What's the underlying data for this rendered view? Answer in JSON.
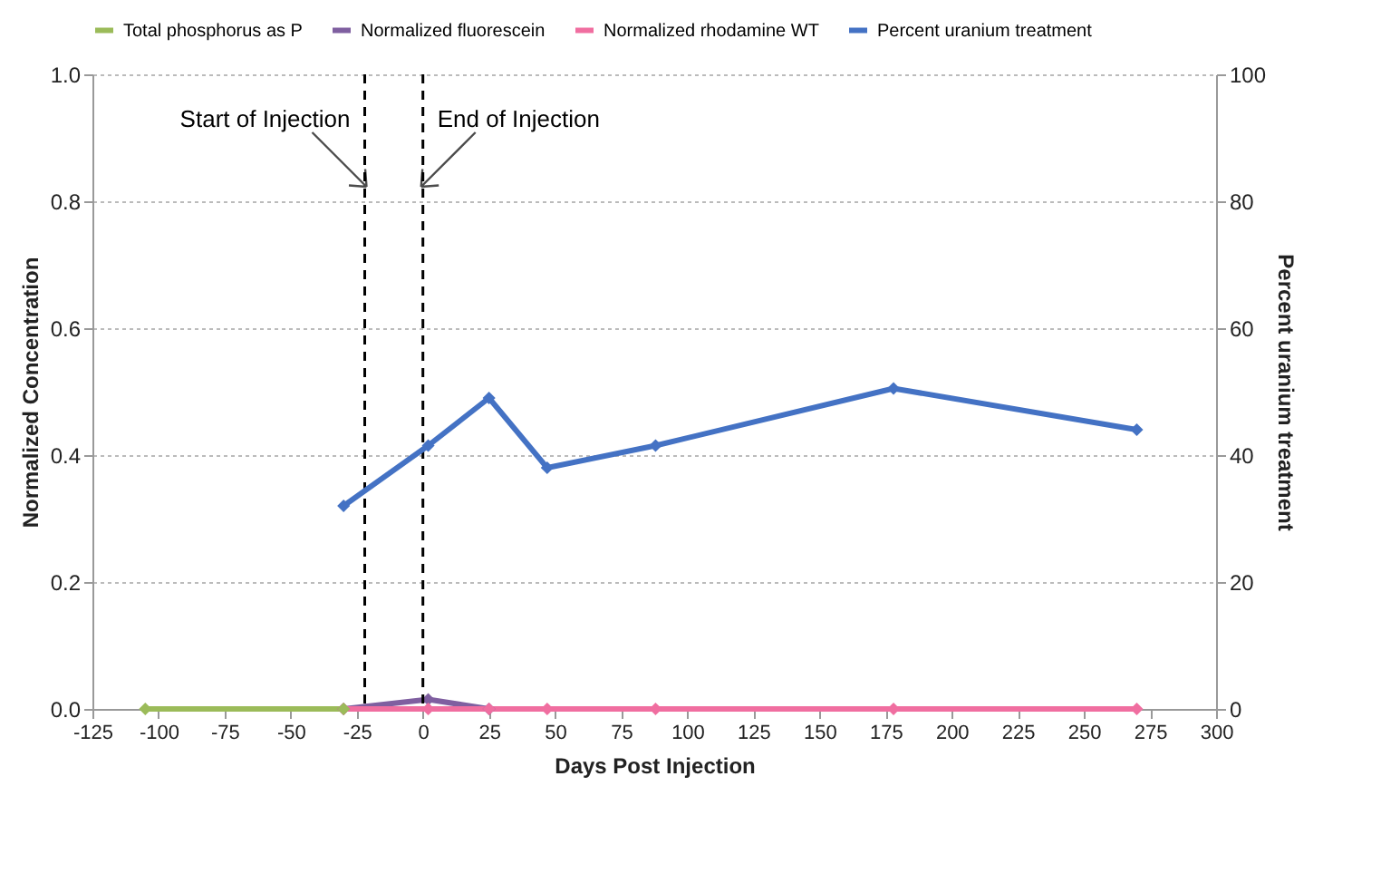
{
  "chart_data": {
    "type": "line",
    "xlabel": "Days Post Injection",
    "ylabel": "Normalized Concentration",
    "y2label": "Percent uranium treatment",
    "xlim": [
      -125,
      300
    ],
    "xticks": [
      -125,
      -100,
      -75,
      -50,
      -25,
      0,
      25,
      50,
      75,
      100,
      125,
      150,
      175,
      200,
      225,
      250,
      275,
      300
    ],
    "ylim": [
      0,
      1
    ],
    "yticks": [
      {
        "value": 0,
        "label": "0.0"
      },
      0.2,
      0.4,
      0.6,
      0.8,
      {
        "value": 1,
        "label": "1.0"
      }
    ],
    "y2lim": [
      0,
      100
    ],
    "y2ticks": [
      0,
      20,
      40,
      60,
      80,
      100
    ],
    "grid": "y",
    "legend": "top",
    "marker": "diamond",
    "line_style": "solid",
    "series": [
      {
        "name": "Total phosphorus as P",
        "color": "#9bbb59",
        "x": [
          -105,
          -30
        ],
        "values": [
          0,
          0
        ]
      },
      {
        "name": "Normalized fluorescein",
        "color": "#7f5fa0",
        "x": [
          -30,
          2,
          25
        ],
        "values": [
          0,
          0.015,
          0
        ]
      },
      {
        "name": "Normalized rhodamine WT",
        "color": "#f06ea0",
        "x": [
          -30,
          2,
          25,
          47,
          88,
          178,
          270
        ],
        "values": [
          0,
          0,
          0,
          0,
          0,
          0,
          0
        ]
      },
      {
        "name": "Percent uranium treatment",
        "color": "#4472c4",
        "axis": "y2",
        "x": [
          -30,
          2,
          25,
          47,
          88,
          178,
          270
        ],
        "values": [
          32,
          41.5,
          49,
          38,
          41.5,
          50.5,
          44
        ]
      }
    ],
    "ref_lines": [
      {
        "axis": "x",
        "value": -22,
        "label": "Start of Injection",
        "line_style": "dashed",
        "color": "#000000"
      },
      {
        "axis": "x",
        "value": 0,
        "label": "End of Injection",
        "line_style": "dashed",
        "color": "#000000"
      }
    ]
  }
}
